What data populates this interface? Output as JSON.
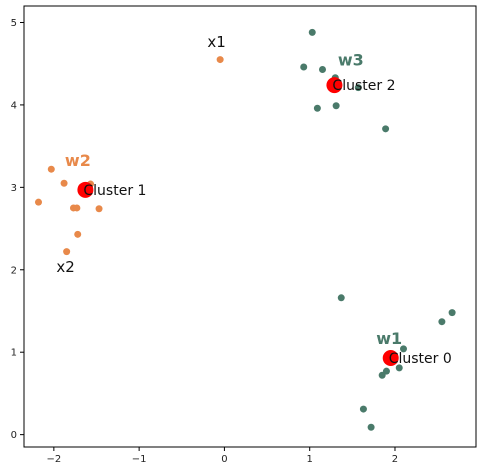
{
  "chart_data": {
    "type": "scatter",
    "xlim": [
      -2.35,
      2.95
    ],
    "ylim": [
      -0.15,
      5.2
    ],
    "x_ticks": [
      -2,
      -1,
      0,
      1,
      2
    ],
    "y_ticks": [
      0,
      1,
      2,
      3,
      4,
      5
    ],
    "x_tick_labels": [
      "−2",
      "−1",
      "0",
      "1",
      "2"
    ],
    "y_tick_labels": [
      "0",
      "1",
      "2",
      "3",
      "4",
      "5"
    ],
    "grid": false,
    "colors": {
      "green": "#4a7a6a",
      "orange": "#e8894a",
      "centroid": "#ff0000",
      "axes": "#000000"
    },
    "series": [
      {
        "color_key": "green",
        "points": [
          [
            1.03,
            4.88
          ],
          [
            0.93,
            4.46
          ],
          [
            1.15,
            4.43
          ],
          [
            1.3,
            4.33
          ],
          [
            1.57,
            4.21
          ],
          [
            1.31,
            3.99
          ],
          [
            1.09,
            3.96
          ],
          [
            1.89,
            3.71
          ],
          [
            1.37,
            1.66
          ],
          [
            2.55,
            1.37
          ],
          [
            2.67,
            1.48
          ],
          [
            2.1,
            1.04
          ],
          [
            1.9,
            0.77
          ],
          [
            2.05,
            0.81
          ],
          [
            1.85,
            0.72
          ],
          [
            1.63,
            0.31
          ],
          [
            1.72,
            0.09
          ]
        ]
      },
      {
        "color_key": "orange",
        "points": [
          [
            -0.05,
            4.55
          ],
          [
            -2.03,
            3.22
          ],
          [
            -1.88,
            3.05
          ],
          [
            -1.57,
            3.04
          ],
          [
            -2.18,
            2.82
          ],
          [
            -1.77,
            2.75
          ],
          [
            -1.73,
            2.75
          ],
          [
            -1.47,
            2.74
          ],
          [
            -1.72,
            2.43
          ],
          [
            -1.85,
            2.22
          ]
        ]
      }
    ],
    "centroids": [
      {
        "x": 1.95,
        "y": 0.93,
        "label": "Cluster 0"
      },
      {
        "x": -1.63,
        "y": 2.97,
        "label": "Cluster 1"
      },
      {
        "x": 1.29,
        "y": 4.24,
        "label": "Cluster 2"
      }
    ],
    "annotations": [
      {
        "text": "x1",
        "x": -0.2,
        "y": 4.7,
        "size": 15,
        "bold": false,
        "color_key": "text"
      },
      {
        "text": "x2",
        "x": -1.97,
        "y": 1.97,
        "size": 15,
        "bold": false,
        "color_key": "text"
      },
      {
        "text": "w1",
        "x": 1.78,
        "y": 1.1,
        "size": 16,
        "bold": true,
        "color_key": "green"
      },
      {
        "text": "w2",
        "x": -1.87,
        "y": 3.26,
        "size": 16,
        "bold": true,
        "color_key": "orange"
      },
      {
        "text": "w3",
        "x": 1.33,
        "y": 4.48,
        "size": 16,
        "bold": true,
        "color_key": "green"
      }
    ]
  }
}
